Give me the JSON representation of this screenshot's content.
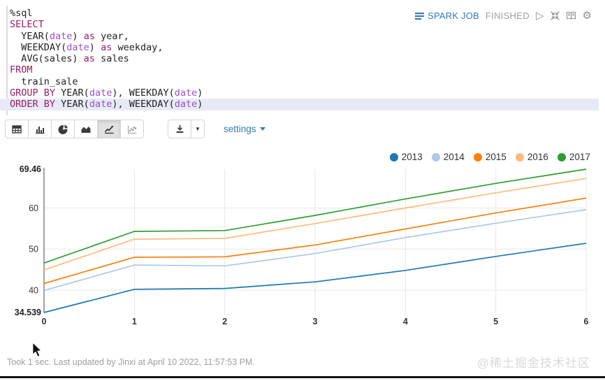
{
  "header": {
    "spark_job_label": "SPARK JOB",
    "status": "FINISHED",
    "icons": [
      "spark-list-icon",
      "play-icon",
      "compress-icon",
      "book-icon",
      "gear-icon"
    ]
  },
  "editor": {
    "lines": [
      {
        "highlight": false,
        "tokens": [
          {
            "c": "pl",
            "t": "%sql"
          }
        ]
      },
      {
        "highlight": false,
        "tokens": [
          {
            "c": "kw",
            "t": "SELECT"
          }
        ]
      },
      {
        "highlight": false,
        "tokens": [
          {
            "c": "pl",
            "t": "  YEAR("
          },
          {
            "c": "var",
            "t": "date"
          },
          {
            "c": "pl",
            "t": ") "
          },
          {
            "c": "kw",
            "t": "as"
          },
          {
            "c": "pl",
            "t": " year,"
          }
        ]
      },
      {
        "highlight": false,
        "tokens": [
          {
            "c": "pl",
            "t": "  WEEKDAY("
          },
          {
            "c": "var",
            "t": "date"
          },
          {
            "c": "pl",
            "t": ") "
          },
          {
            "c": "kw",
            "t": "as"
          },
          {
            "c": "pl",
            "t": " weekday,"
          }
        ]
      },
      {
        "highlight": false,
        "tokens": [
          {
            "c": "pl",
            "t": "  AVG(sales) "
          },
          {
            "c": "kw",
            "t": "as"
          },
          {
            "c": "pl",
            "t": " sales"
          }
        ]
      },
      {
        "highlight": false,
        "tokens": [
          {
            "c": "kw",
            "t": "FROM"
          }
        ]
      },
      {
        "highlight": false,
        "tokens": [
          {
            "c": "pl",
            "t": "  train_sale"
          }
        ]
      },
      {
        "highlight": false,
        "tokens": [
          {
            "c": "kw",
            "t": "GROUP BY"
          },
          {
            "c": "pl",
            "t": " YEAR("
          },
          {
            "c": "var",
            "t": "date"
          },
          {
            "c": "pl",
            "t": "), WEEKDAY("
          },
          {
            "c": "var",
            "t": "date"
          },
          {
            "c": "pl",
            "t": ")"
          }
        ]
      },
      {
        "highlight": true,
        "tokens": [
          {
            "c": "kw",
            "t": "ORDER BY"
          },
          {
            "c": "pl",
            "t": " YEAR("
          },
          {
            "c": "var",
            "t": "date"
          },
          {
            "c": "pl",
            "t": "), WEEKDAY("
          },
          {
            "c": "var",
            "t": "date"
          },
          {
            "c": "pl",
            "t": ")"
          }
        ]
      }
    ]
  },
  "toolbar": {
    "chart_types": [
      "table",
      "bar",
      "pie",
      "area",
      "line",
      "scatter"
    ],
    "selected": "line",
    "download_label": "download",
    "settings_label": "settings"
  },
  "chart_data": {
    "type": "line",
    "title": "",
    "xlabel": "",
    "ylabel": "",
    "x": [
      0,
      1,
      2,
      3,
      4,
      5,
      6
    ],
    "xtick_labels": [
      "0",
      "1",
      "2",
      "3",
      "4",
      "5",
      "6"
    ],
    "series": [
      {
        "name": "2013",
        "color": "#1f77b4",
        "values": [
          34.539,
          40.2,
          40.4,
          42.0,
          44.8,
          48.2,
          51.4
        ]
      },
      {
        "name": "2014",
        "color": "#aec7e8",
        "values": [
          39.9,
          46.1,
          45.9,
          48.9,
          52.8,
          56.3,
          59.6
        ]
      },
      {
        "name": "2015",
        "color": "#ff7f0e",
        "values": [
          41.6,
          48.0,
          48.1,
          51.0,
          54.9,
          58.8,
          62.4
        ]
      },
      {
        "name": "2016",
        "color": "#ffbb78",
        "values": [
          44.9,
          52.4,
          52.6,
          56.2,
          60.0,
          63.7,
          67.2
        ]
      },
      {
        "name": "2017",
        "color": "#2ca02c",
        "values": [
          46.6,
          54.3,
          54.5,
          58.2,
          62.2,
          66.0,
          69.46
        ]
      }
    ],
    "ylim": [
      34.539,
      69.46
    ],
    "ymin_label": "34.539",
    "ymax_label": "69.46",
    "yticks": [
      40,
      50,
      60
    ],
    "grid": true,
    "legend_position": "top-right"
  },
  "footer": {
    "status_text": "Took 1 sec. Last updated by Jinxi at April 10 2022, 11:57:53 PM.",
    "watermark": "@稀土掘金技术社区"
  },
  "colors": {
    "accent_blue": "#337ab7",
    "status_gray": "#9aa0a6",
    "keyword": "#962062",
    "type_keyword": "#9a4fc8",
    "highlight_line": "#e7eaf6",
    "gridline": "#e7e7e7",
    "axis": "#7a7a7a"
  }
}
